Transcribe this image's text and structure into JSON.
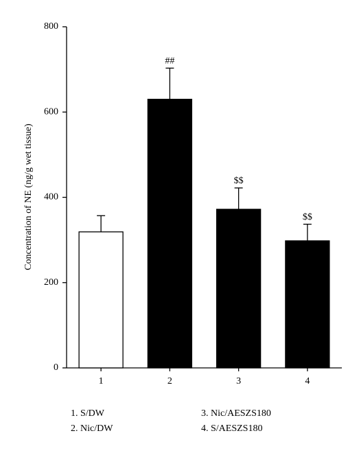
{
  "chart_data": {
    "type": "bar",
    "y_label": "Concentration of NE (ng/g wet tissue)",
    "categories": [
      "1",
      "2",
      "3",
      "4"
    ],
    "values": [
      319,
      630,
      372,
      298
    ],
    "errors": [
      38,
      73,
      50,
      39
    ],
    "colors": [
      "#ffffff",
      "#000000",
      "#000000",
      "#000000"
    ],
    "annotations": [
      null,
      "##",
      "$$",
      "$$"
    ],
    "ylim": [
      0,
      800
    ],
    "yticks": [
      0,
      200,
      400,
      600,
      800
    ],
    "legend_labels": [
      "1. S/DW",
      "2. Nic/DW",
      "3. Nic/AESZS180",
      "4. S/AESZS180"
    ]
  }
}
